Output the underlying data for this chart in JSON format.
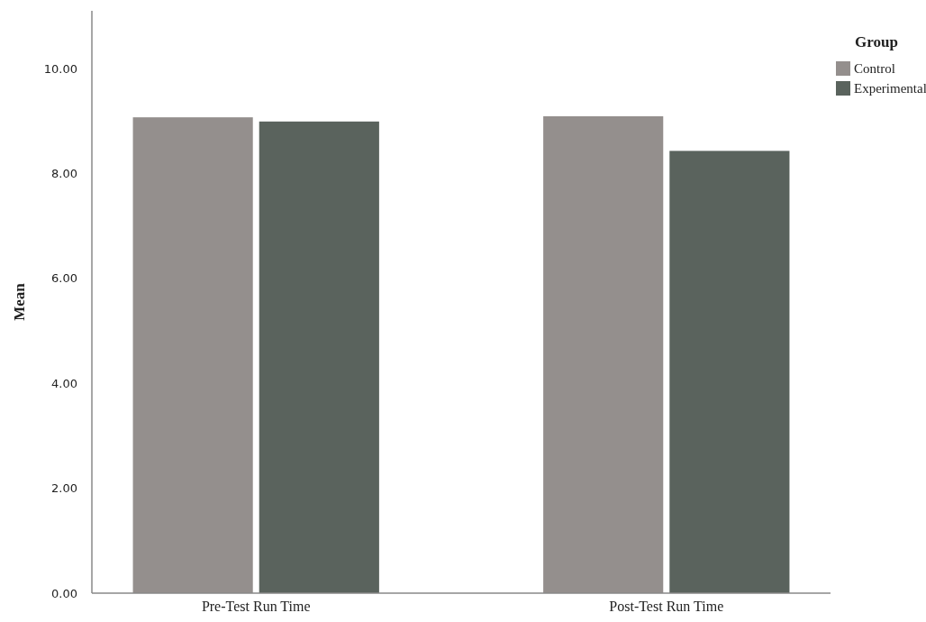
{
  "chart_data": {
    "type": "bar",
    "ylabel": "Mean",
    "legend_title": "Group",
    "categories": [
      "Pre-Test Run Time",
      "Post-Test Run Time"
    ],
    "series": [
      {
        "name": "Control",
        "color": "#948f8d",
        "values": [
          9.07,
          9.09
        ]
      },
      {
        "name": "Experimental",
        "color": "#5a635d",
        "values": [
          8.99,
          8.43
        ]
      }
    ],
    "ylim": [
      0,
      11.1
    ],
    "yticks": [
      {
        "value": 0,
        "label": "0.00"
      },
      {
        "value": 2,
        "label": "2.00"
      },
      {
        "value": 4,
        "label": "4.00"
      },
      {
        "value": 6,
        "label": "6.00"
      },
      {
        "value": 8,
        "label": "8.00"
      },
      {
        "value": 10,
        "label": "10.00"
      }
    ],
    "grid": false,
    "legend": "top right"
  }
}
